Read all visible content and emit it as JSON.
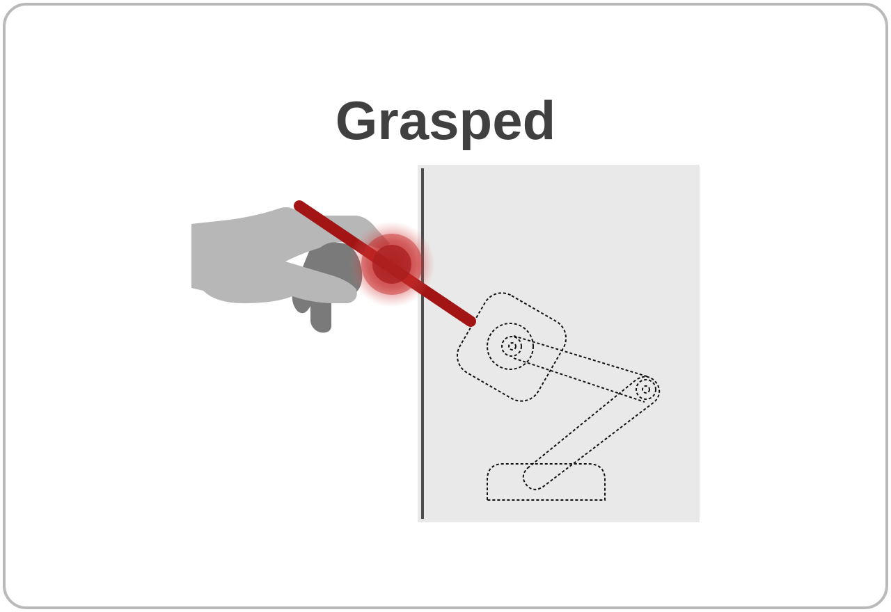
{
  "title": "Grasped",
  "colors": {
    "frame_border": "#b9b9b9",
    "title_text": "#404040",
    "panel_bg": "#e9e9e9",
    "panel_edge": "#4d4d4d",
    "hand_light": "#b7b7b7",
    "hand_dark": "#7a7a7a",
    "stylus": "#a31515",
    "grasp_glow": "#c62828",
    "robot_outline": "#111111"
  },
  "icons": {
    "hand": "hand-icon",
    "stylus": "stylus-icon",
    "grasp_point": "grasp-point-icon",
    "robot_arm": "robot-arm-icon"
  },
  "state": "grasped"
}
